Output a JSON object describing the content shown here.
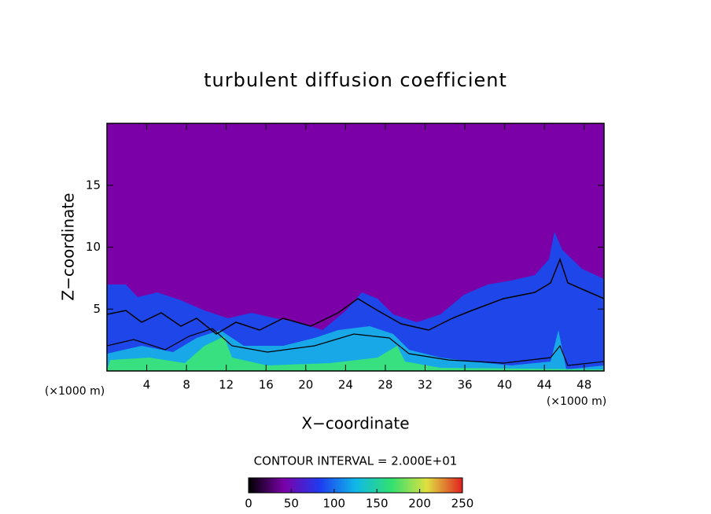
{
  "chart_data": {
    "type": "contour",
    "title": "turbulent diffusion coefficient",
    "x_label": "X−coordinate",
    "y_label": "Z−coordinate",
    "x_unit_label": "(×1000 m)",
    "xlim": [
      0,
      50
    ],
    "xticks": [
      4,
      8,
      12,
      16,
      20,
      24,
      28,
      32,
      36,
      40,
      44,
      48
    ],
    "ylim": [
      0,
      20
    ],
    "yticks": [
      5,
      10,
      15
    ],
    "contour_label": "CONTOUR INTERVAL = 2.000E+01",
    "clim": [
      0,
      250
    ],
    "colorbar_ticks": [
      0,
      50,
      100,
      150,
      200,
      250
    ],
    "colormap": [
      "#000000",
      "#7a00a8",
      "#1e3cf0",
      "#10b8e8",
      "#30e070",
      "#e0e040",
      "#e02020"
    ]
  }
}
